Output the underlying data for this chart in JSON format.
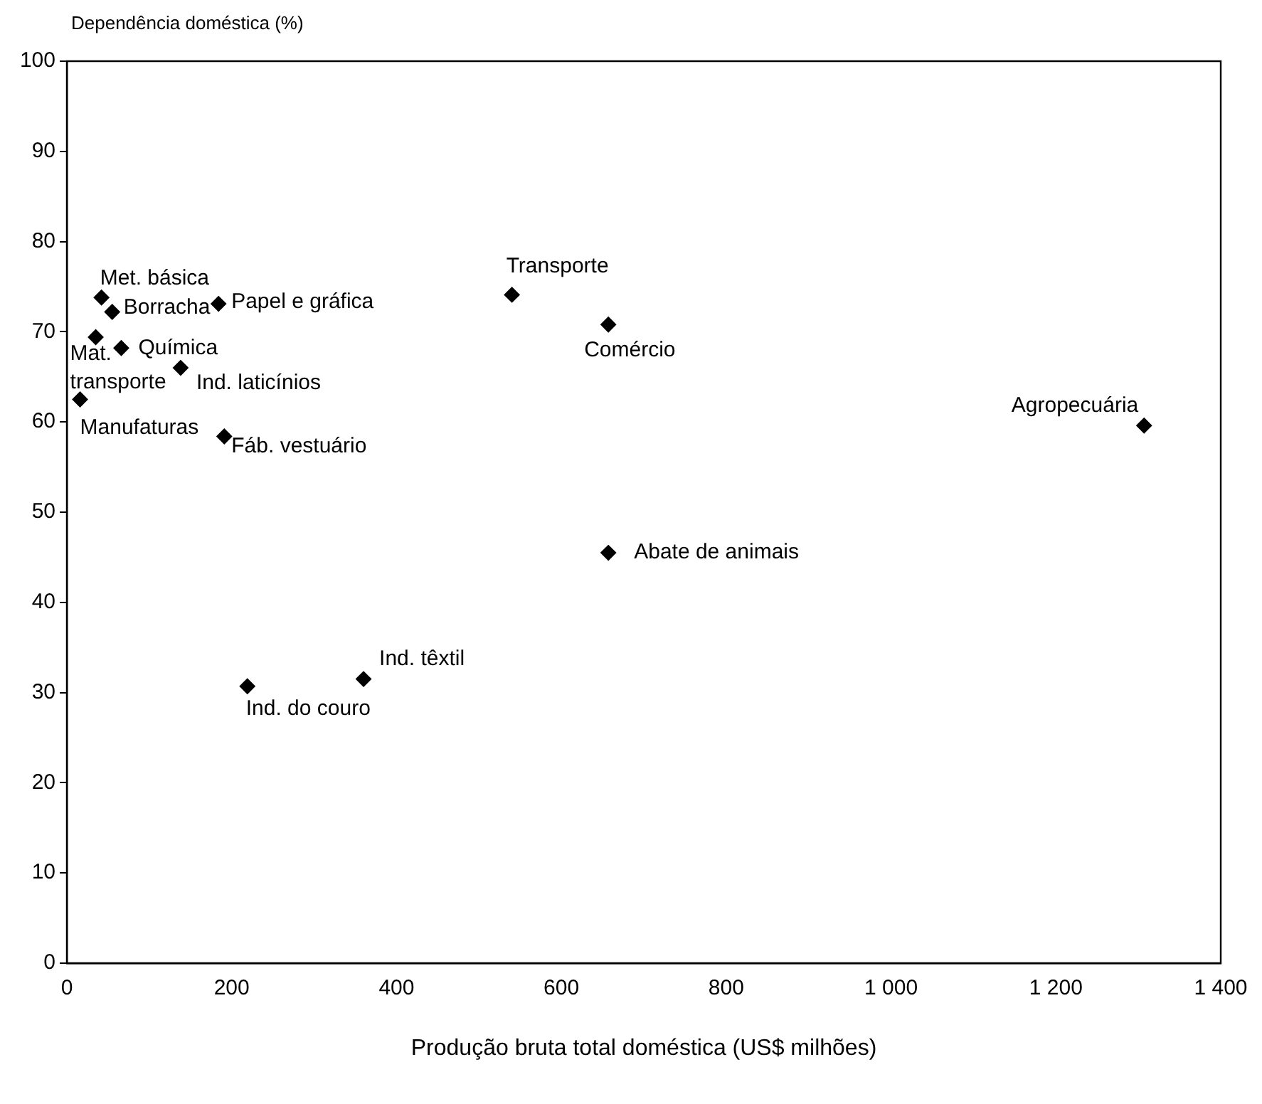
{
  "chart_data": {
    "type": "scatter",
    "ylabel": "Dependência doméstica (%)",
    "xlabel": "Produção bruta total doméstica (US$ milhões)",
    "x": [
      42,
      55,
      184,
      35,
      66,
      138,
      16,
      191,
      219,
      360,
      540,
      657,
      657,
      1307
    ],
    "values": [
      73.8,
      72.2,
      73.1,
      69.4,
      68.2,
      66.0,
      62.5,
      58.4,
      30.7,
      31.5,
      74.1,
      70.8,
      45.5,
      59.6
    ],
    "color": "#000000",
    "marker": "diamond",
    "xlim": [
      0,
      1400
    ],
    "xticks": [
      0,
      200,
      400,
      600,
      800,
      {
        "value": 1000,
        "label": "1 000"
      },
      {
        "value": 1200,
        "label": "1 200"
      },
      {
        "value": 1400,
        "label": "1 400"
      }
    ],
    "ylim": [
      0,
      100
    ],
    "yticks": [
      0,
      10,
      20,
      30,
      40,
      50,
      60,
      70,
      80,
      90,
      100
    ],
    "annotations": [
      {
        "text": "Met. básica",
        "x": 42,
        "y": 73.8
      },
      {
        "text": "Borracha",
        "x": 55,
        "y": 72.2
      },
      {
        "text": "Papel e gráfica",
        "x": 184,
        "y": 73.1
      },
      {
        "text": "Mat. transporte",
        "x": 35,
        "y": 69.4
      },
      {
        "text": "Química",
        "x": 66,
        "y": 68.2
      },
      {
        "text": "Ind. laticínios",
        "x": 138,
        "y": 66.0
      },
      {
        "text": "Manufaturas",
        "x": 16,
        "y": 62.5
      },
      {
        "text": "Fáb. vestuário",
        "x": 191,
        "y": 58.4
      },
      {
        "text": "Ind. do couro",
        "x": 219,
        "y": 30.7
      },
      {
        "text": "Ind. têxtil",
        "x": 360,
        "y": 31.5
      },
      {
        "text": "Transporte",
        "x": 540,
        "y": 74.1
      },
      {
        "text": "Comércio",
        "x": 657,
        "y": 70.8
      },
      {
        "text": "Abate de animais",
        "x": 657,
        "y": 45.5
      },
      {
        "text": "Agropecuária",
        "x": 1307,
        "y": 59.6
      }
    ]
  }
}
